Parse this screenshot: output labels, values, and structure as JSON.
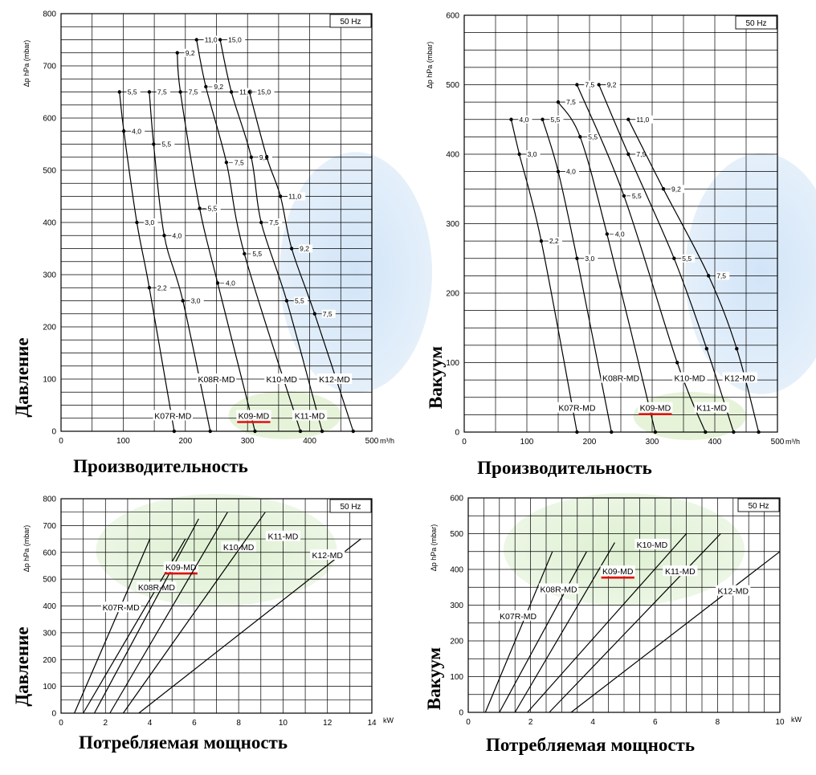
{
  "chart_data": [
    {
      "type": "line",
      "chart_title": "",
      "xlabel": "Производительность",
      "ylabel": "Давление",
      "y_unit_label": "Δp hPa (mbar)",
      "x_unit_label": "m³/h",
      "frequency": "50 Hz",
      "xlim": [
        0,
        500
      ],
      "ylim": [
        0,
        800
      ],
      "x_ticks": [
        0,
        100,
        200,
        300,
        400,
        500
      ],
      "y_ticks": [
        0,
        100,
        200,
        300,
        400,
        500,
        600,
        700,
        800
      ],
      "x_tick_labels": [
        "0",
        "100",
        "200",
        "300",
        "400",
        "500 m³/h"
      ],
      "grid": true,
      "highlighted_series": "K09-MD",
      "series": [
        {
          "name": "K07R-MD",
          "label_pos": [
            180,
            30
          ],
          "points": [
            [
              94,
              650
            ],
            [
              101,
              575
            ],
            [
              122,
              400
            ],
            [
              142,
              275
            ],
            [
              182,
              0
            ]
          ],
          "point_labels": [
            "5,5",
            "4,0",
            "3,0",
            "2,2",
            ""
          ]
        },
        {
          "name": "K08R-MD",
          "label_pos": [
            250,
            100
          ],
          "points": [
            [
              142,
              650
            ],
            [
              149,
              550
            ],
            [
              166,
              375
            ],
            [
              196,
              250
            ],
            [
              240,
              0
            ]
          ],
          "point_labels": [
            "7,5",
            "5,5",
            "4,0",
            "3,0",
            ""
          ]
        },
        {
          "name": "K09-MD",
          "label_pos": [
            310,
            30
          ],
          "points": [
            [
              187,
              725
            ],
            [
              192,
              650
            ],
            [
              223,
              427
            ],
            [
              252,
              284
            ],
            [
              312,
              0
            ]
          ],
          "point_labels": [
            "9,2",
            "7,5",
            "5,5",
            "4,0",
            ""
          ]
        },
        {
          "name": "K10-MD",
          "label_pos": [
            355,
            100
          ],
          "points": [
            [
              218,
              750
            ],
            [
              233,
              660
            ],
            [
              266,
              515
            ],
            [
              295,
              340
            ],
            [
              385,
              0
            ]
          ],
          "point_labels": [
            "11,0",
            "9,2",
            "7,5",
            "5,5",
            ""
          ]
        },
        {
          "name": "K11-MD",
          "label_pos": [
            400,
            30
          ],
          "points": [
            [
              256,
              750
            ],
            [
              274,
              650
            ],
            [
              306,
              525
            ],
            [
              322,
              400
            ],
            [
              363,
              250
            ],
            [
              420,
              0
            ]
          ],
          "point_labels": [
            "15,0",
            "11,0",
            "9,2",
            "7,5",
            "5,5",
            ""
          ]
        },
        {
          "name": "K12-MD",
          "label_pos": [
            440,
            100
          ],
          "points": [
            [
              303,
              650
            ],
            [
              331,
              525
            ],
            [
              353,
              450
            ],
            [
              371,
              350
            ],
            [
              408,
              225
            ],
            [
              470,
              0
            ]
          ],
          "point_labels": [
            "15,0",
            "",
            "11,0",
            "9,2",
            "7,5",
            ""
          ]
        }
      ]
    },
    {
      "type": "line",
      "chart_title": "",
      "xlabel": "Производительность",
      "ylabel": "Вакуум",
      "y_unit_label": "Δp hPa (mbar)",
      "x_unit_label": "m³/h",
      "frequency": "50 Hz",
      "xlim": [
        0,
        500
      ],
      "ylim": [
        0,
        600
      ],
      "x_ticks": [
        0,
        100,
        200,
        300,
        400,
        500
      ],
      "y_ticks": [
        0,
        100,
        200,
        300,
        400,
        500,
        600
      ],
      "x_tick_labels": [
        "0",
        "100",
        "200",
        "300",
        "400",
        "500 m³/h"
      ],
      "grid": true,
      "highlighted_series": "K09-MD",
      "series": [
        {
          "name": "K07R-MD",
          "label_pos": [
            180,
            35
          ],
          "points": [
            [
              75,
              450
            ],
            [
              88,
              400
            ],
            [
              123,
              275
            ],
            [
              180,
              0
            ]
          ],
          "point_labels": [
            "4,0",
            "3,0",
            "2,2",
            ""
          ]
        },
        {
          "name": "K08R-MD",
          "label_pos": [
            250,
            78
          ],
          "points": [
            [
              125,
              450
            ],
            [
              150,
              375
            ],
            [
              180,
              250
            ],
            [
              235,
              0
            ]
          ],
          "point_labels": [
            "5,5",
            "4,0",
            "3,0",
            ""
          ]
        },
        {
          "name": "K09-MD",
          "label_pos": [
            305,
            35
          ],
          "points": [
            [
              150,
              475
            ],
            [
              185,
              425
            ],
            [
              228,
              285
            ],
            [
              305,
              0
            ]
          ],
          "point_labels": [
            "7,5",
            "5,5",
            "4,0",
            ""
          ]
        },
        {
          "name": "K10-MD",
          "label_pos": [
            360,
            78
          ],
          "points": [
            [
              180,
              500
            ],
            [
              255,
              340
            ],
            [
              340,
              100
            ],
            [
              385,
              0
            ]
          ],
          "point_labels": [
            "7,5",
            "5,5",
            "",
            ""
          ]
        },
        {
          "name": "K11-MD",
          "label_pos": [
            395,
            35
          ],
          "points": [
            [
              215,
              500
            ],
            [
              262,
              400
            ],
            [
              335,
              250
            ],
            [
              387,
              120
            ],
            [
              430,
              0
            ]
          ],
          "point_labels": [
            "9,2",
            "7,5",
            "5,5",
            "",
            ""
          ]
        },
        {
          "name": "K12-MD",
          "label_pos": [
            440,
            78
          ],
          "points": [
            [
              262,
              450
            ],
            [
              318,
              350
            ],
            [
              390,
              225
            ],
            [
              435,
              120
            ],
            [
              470,
              0
            ]
          ],
          "point_labels": [
            "11,0",
            "9,2",
            "7,5",
            "",
            ""
          ]
        }
      ]
    },
    {
      "type": "line",
      "chart_title": "",
      "xlabel": "Потребляемая мощность",
      "ylabel": "Давление",
      "y_unit_label": "Δp hPa (mbar)",
      "x_unit_label": "kW",
      "frequency": "50 Hz",
      "xlim": [
        0,
        14
      ],
      "ylim": [
        0,
        800
      ],
      "x_ticks": [
        0,
        2,
        4,
        6,
        8,
        10,
        12,
        14
      ],
      "y_ticks": [
        0,
        100,
        200,
        300,
        400,
        500,
        600,
        700,
        800
      ],
      "x_tick_labels": [
        "0",
        "2",
        "4",
        "6",
        "8",
        "10",
        "12",
        "14"
      ],
      "grid": true,
      "highlighted_series": "K09-MD",
      "series": [
        {
          "name": "K07R-MD",
          "label_pos": [
            2.7,
            395
          ],
          "points": [
            [
              0.6,
              0
            ],
            [
              4.0,
              650
            ]
          ]
        },
        {
          "name": "K08R-MD",
          "label_pos": [
            4.3,
            470
          ],
          "points": [
            [
              1.0,
              0
            ],
            [
              5.6,
              650
            ]
          ]
        },
        {
          "name": "K09-MD",
          "label_pos": [
            5.4,
            545
          ],
          "points": [
            [
              1.5,
              0
            ],
            [
              6.2,
              725
            ]
          ]
        },
        {
          "name": "K10-MD",
          "label_pos": [
            8.0,
            620
          ],
          "points": [
            [
              2.2,
              0
            ],
            [
              7.5,
              750
            ]
          ]
        },
        {
          "name": "K11-MD",
          "label_pos": [
            10.0,
            660
          ],
          "points": [
            [
              2.8,
              0
            ],
            [
              9.2,
              750
            ]
          ]
        },
        {
          "name": "K12-MD",
          "label_pos": [
            12.0,
            590
          ],
          "points": [
            [
              3.5,
              0
            ],
            [
              13.5,
              650
            ]
          ]
        }
      ]
    },
    {
      "type": "line",
      "chart_title": "",
      "xlabel": "Потребляемая мощность",
      "ylabel": "Вакуум",
      "y_unit_label": "Δp hPa (mbar)",
      "x_unit_label": "kW",
      "frequency": "50 Hz",
      "xlim": [
        0,
        10
      ],
      "ylim": [
        0,
        600
      ],
      "x_ticks": [
        0,
        2,
        4,
        6,
        8,
        10
      ],
      "y_ticks": [
        0,
        100,
        200,
        300,
        400,
        500,
        600
      ],
      "x_tick_labels": [
        "0",
        "2",
        "4",
        "6",
        "8",
        "10"
      ],
      "grid": true,
      "highlighted_series": "K09-MD",
      "series": [
        {
          "name": "K07R-MD",
          "label_pos": [
            1.6,
            270
          ],
          "points": [
            [
              0.55,
              0
            ],
            [
              2.7,
              450
            ]
          ]
        },
        {
          "name": "K08R-MD",
          "label_pos": [
            2.9,
            345
          ],
          "points": [
            [
              1.0,
              0
            ],
            [
              3.8,
              450
            ]
          ]
        },
        {
          "name": "K09-MD",
          "label_pos": [
            4.8,
            395
          ],
          "points": [
            [
              1.5,
              0
            ],
            [
              4.7,
              475
            ]
          ]
        },
        {
          "name": "K10-MD",
          "label_pos": [
            5.9,
            470
          ],
          "points": [
            [
              1.9,
              0
            ],
            [
              7.0,
              500
            ]
          ]
        },
        {
          "name": "K11-MD",
          "label_pos": [
            6.8,
            395
          ],
          "points": [
            [
              2.6,
              0
            ],
            [
              8.1,
              500
            ]
          ]
        },
        {
          "name": "K12-MD",
          "label_pos": [
            8.5,
            340
          ],
          "points": [
            [
              3.3,
              0
            ],
            [
              10.0,
              450
            ]
          ]
        }
      ]
    }
  ]
}
